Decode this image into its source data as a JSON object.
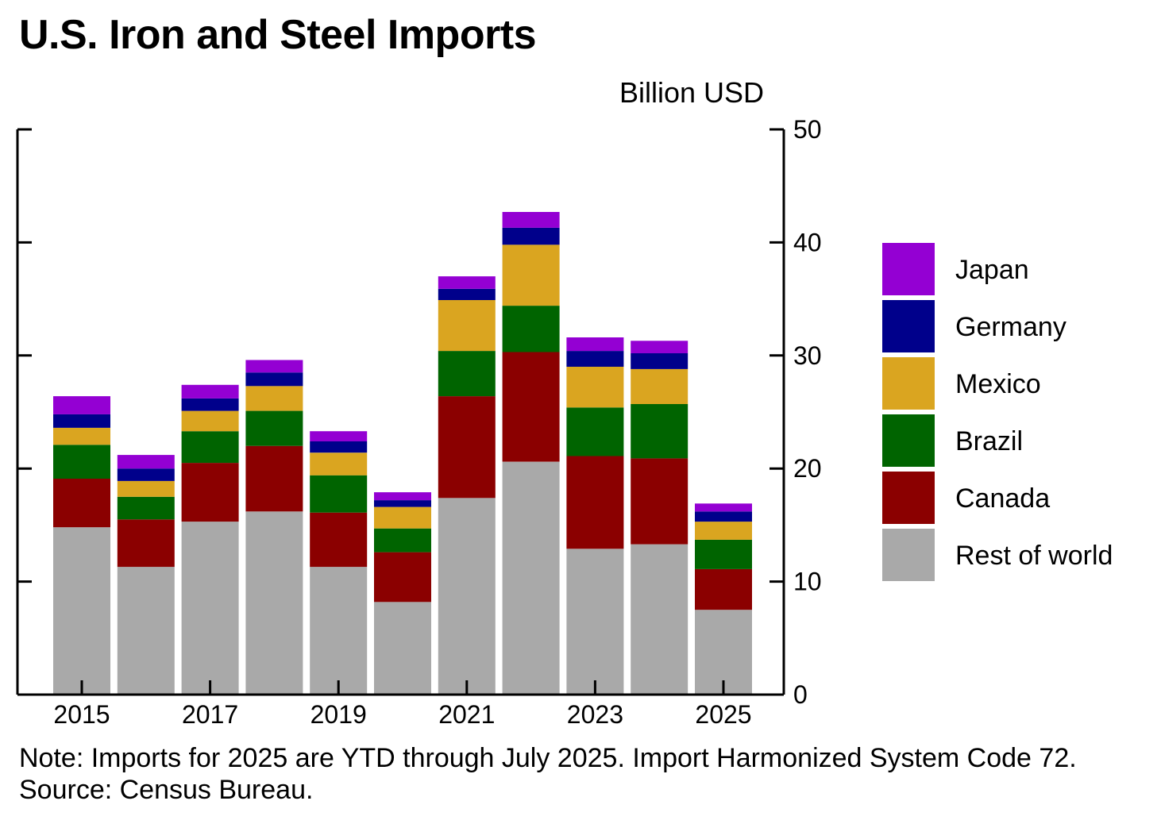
{
  "title": "U.S. Iron and Steel Imports",
  "unit_label": "Billion USD",
  "note": "Note: Imports for 2025 are YTD through July 2025. Import Harmonized System Code 72.",
  "source": "Source: Census Bureau.",
  "colors": {
    "Rest of world": "#a9a9a9",
    "Canada": "#8b0000",
    "Brazil": "#006400",
    "Mexico": "#daa520",
    "Germany": "#00008b",
    "Japan": "#9400d3"
  },
  "chart_data": {
    "type": "bar",
    "stacked": true,
    "categories": [
      "2015",
      "2016",
      "2017",
      "2018",
      "2019",
      "2020",
      "2021",
      "2022",
      "2023",
      "2024",
      "2025"
    ],
    "x_tick_labels": [
      "2015",
      "2017",
      "2019",
      "2021",
      "2023",
      "2025"
    ],
    "series": [
      {
        "name": "Rest of world",
        "values": [
          14.8,
          11.3,
          15.3,
          16.2,
          11.3,
          8.2,
          17.4,
          20.6,
          12.9,
          13.3,
          7.5
        ]
      },
      {
        "name": "Canada",
        "values": [
          4.3,
          4.2,
          5.2,
          5.8,
          4.8,
          4.4,
          9.0,
          9.7,
          8.2,
          7.6,
          3.6
        ]
      },
      {
        "name": "Brazil",
        "values": [
          3.0,
          2.0,
          2.8,
          3.1,
          3.3,
          2.1,
          4.0,
          4.1,
          4.3,
          4.8,
          2.6
        ]
      },
      {
        "name": "Mexico",
        "values": [
          1.5,
          1.4,
          1.8,
          2.2,
          2.0,
          1.9,
          4.5,
          5.4,
          3.6,
          3.1,
          1.6
        ]
      },
      {
        "name": "Germany",
        "values": [
          1.2,
          1.1,
          1.1,
          1.2,
          1.0,
          0.6,
          1.0,
          1.5,
          1.4,
          1.4,
          0.9
        ]
      },
      {
        "name": "Japan",
        "values": [
          1.6,
          1.2,
          1.2,
          1.1,
          0.9,
          0.7,
          1.1,
          1.4,
          1.2,
          1.1,
          0.7
        ]
      }
    ],
    "legend_order": [
      "Japan",
      "Germany",
      "Mexico",
      "Brazil",
      "Canada",
      "Rest of world"
    ],
    "legend_position": "right",
    "ylabel": "Billion USD",
    "y_axis_side": "right",
    "ylim": [
      0,
      50
    ],
    "yticks": [
      0,
      10,
      20,
      30,
      40,
      50
    ],
    "grid": false
  }
}
